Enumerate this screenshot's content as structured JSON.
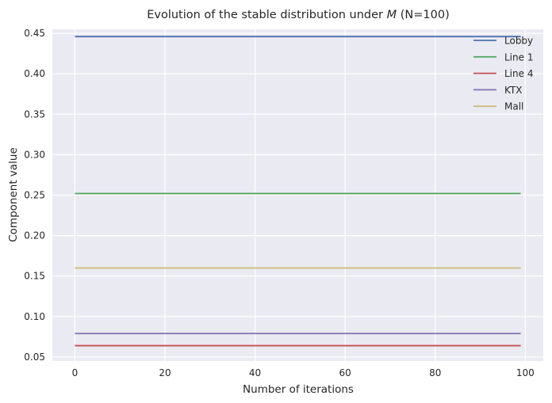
{
  "chart_data": {
    "type": "line",
    "title_prefix": "Evolution of the stable distribution under ",
    "title_symbol": "M",
    "title_suffix": " (N=100)",
    "xlabel": "Number of iterations",
    "ylabel": "Component value",
    "xlim": [
      -5,
      104
    ],
    "ylim": [
      0.045,
      0.455
    ],
    "xticks": [
      0,
      20,
      40,
      60,
      80,
      100
    ],
    "yticks": [
      0.05,
      0.1,
      0.15,
      0.2,
      0.25,
      0.3,
      0.35,
      0.4,
      0.45
    ],
    "grid": true,
    "legend_position": "top-right",
    "x": [
      0,
      99
    ],
    "series": [
      {
        "name": "Lobby",
        "color": "#4c72b0",
        "values": [
          0.446,
          0.446
        ]
      },
      {
        "name": "Line 1",
        "color": "#55a868",
        "values": [
          0.252,
          0.252
        ]
      },
      {
        "name": "Line 4",
        "color": "#c44e52",
        "values": [
          0.064,
          0.064
        ]
      },
      {
        "name": "KTX",
        "color": "#8172b2",
        "values": [
          0.079,
          0.079
        ]
      },
      {
        "name": "Mall",
        "color": "#ccb974",
        "values": [
          0.16,
          0.16
        ]
      }
    ]
  }
}
